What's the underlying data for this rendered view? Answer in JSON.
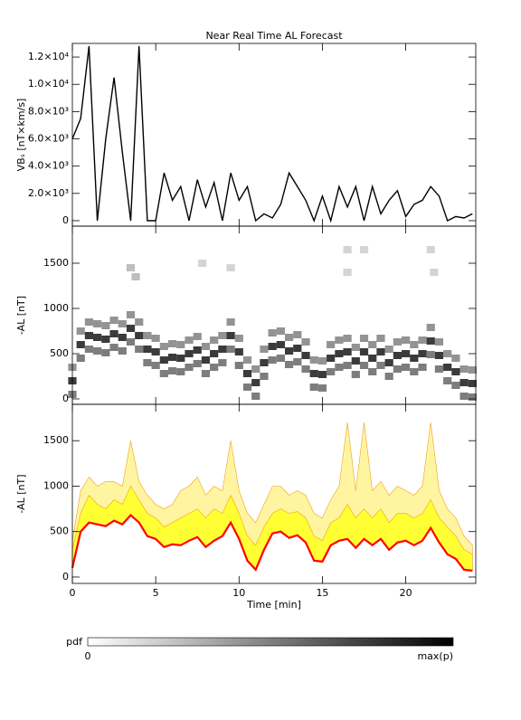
{
  "chart_data": [
    {
      "type": "line",
      "title": "Near Real Time AL Forecast",
      "ylabel": "VBₛ [nT×km/s]",
      "color": "#000000",
      "x": [
        0,
        0.5,
        1,
        1.5,
        2,
        2.5,
        3,
        3.5,
        4,
        4.5,
        5,
        5.5,
        6,
        6.5,
        7,
        7.5,
        8,
        8.5,
        9,
        9.5,
        10,
        10.5,
        11,
        11.5,
        12,
        12.5,
        13,
        13.5,
        14,
        14.5,
        15,
        15.5,
        16,
        16.5,
        17,
        17.5,
        18,
        18.5,
        19,
        19.5,
        20,
        20.5,
        21,
        21.5,
        22,
        22.5,
        23,
        23.5,
        24
      ],
      "values": [
        6000,
        7500,
        12800,
        0,
        6000,
        10500,
        5000,
        0,
        12800,
        0,
        0,
        3500,
        1500,
        2500,
        0,
        3000,
        1000,
        2800,
        0,
        3500,
        1500,
        2500,
        0,
        500,
        200,
        1200,
        3500,
        2500,
        1500,
        0,
        1800,
        0,
        2500,
        1000,
        2500,
        0,
        2500,
        500,
        1500,
        2200,
        300,
        1200,
        1500,
        2500,
        1800,
        0,
        300,
        200,
        500
      ],
      "xlim": [
        0,
        24.2
      ],
      "ylim": [
        -400,
        13000
      ],
      "xticks": [
        0,
        5,
        10,
        15,
        20
      ],
      "yticks": [
        0,
        {
          "value": 2000,
          "label": "2.0×10³"
        },
        {
          "value": 4000,
          "label": "4.0×10³"
        },
        {
          "value": 6000,
          "label": "6.0×10³"
        },
        {
          "value": 8000,
          "label": "8.0×10³"
        },
        {
          "value": 10000,
          "label": "1.0×10⁴"
        },
        {
          "value": 12000,
          "label": "1.2×10⁴"
        }
      ]
    },
    {
      "type": "heatmap",
      "ylabel": "-AL [nT]",
      "color": "#000000",
      "colorbar": {
        "label": "pdf",
        "min_label": "0",
        "max_label": "max(p)"
      },
      "cells": [
        [
          0,
          50,
          0.6
        ],
        [
          0,
          200,
          0.9
        ],
        [
          0,
          350,
          0.5
        ],
        [
          0.5,
          450,
          0.6
        ],
        [
          0.5,
          600,
          0.9
        ],
        [
          0.5,
          750,
          0.5
        ],
        [
          1,
          550,
          0.6
        ],
        [
          1,
          700,
          0.9
        ],
        [
          1,
          850,
          0.5
        ],
        [
          1.5,
          530,
          0.6
        ],
        [
          1.5,
          680,
          0.9
        ],
        [
          1.5,
          830,
          0.5
        ],
        [
          2,
          510,
          0.6
        ],
        [
          2,
          660,
          0.9
        ],
        [
          2,
          810,
          0.5
        ],
        [
          2.5,
          570,
          0.6
        ],
        [
          2.5,
          720,
          0.9
        ],
        [
          2.5,
          870,
          0.5
        ],
        [
          3,
          530,
          0.6
        ],
        [
          3,
          680,
          0.9
        ],
        [
          3,
          830,
          0.5
        ],
        [
          3.5,
          630,
          0.6
        ],
        [
          3.5,
          780,
          0.9
        ],
        [
          3.5,
          930,
          0.5
        ],
        [
          4,
          550,
          0.6
        ],
        [
          4,
          700,
          0.9
        ],
        [
          4,
          850,
          0.5
        ],
        [
          4.5,
          400,
          0.6
        ],
        [
          4.5,
          550,
          0.9
        ],
        [
          4.5,
          700,
          0.5
        ],
        [
          5,
          370,
          0.6
        ],
        [
          5,
          520,
          0.9
        ],
        [
          5,
          670,
          0.5
        ],
        [
          5.5,
          280,
          0.6
        ],
        [
          5.5,
          430,
          0.9
        ],
        [
          5.5,
          580,
          0.5
        ],
        [
          6,
          310,
          0.6
        ],
        [
          6,
          460,
          0.9
        ],
        [
          6,
          610,
          0.5
        ],
        [
          6.5,
          300,
          0.6
        ],
        [
          6.5,
          450,
          0.9
        ],
        [
          6.5,
          600,
          0.5
        ],
        [
          7,
          350,
          0.6
        ],
        [
          7,
          500,
          0.9
        ],
        [
          7,
          650,
          0.5
        ],
        [
          7.5,
          390,
          0.6
        ],
        [
          7.5,
          540,
          0.9
        ],
        [
          7.5,
          690,
          0.5
        ],
        [
          8,
          280,
          0.6
        ],
        [
          8,
          430,
          0.9
        ],
        [
          8,
          580,
          0.5
        ],
        [
          8.5,
          350,
          0.6
        ],
        [
          8.5,
          500,
          0.9
        ],
        [
          8.5,
          650,
          0.5
        ],
        [
          9,
          400,
          0.6
        ],
        [
          9,
          550,
          0.9
        ],
        [
          9,
          700,
          0.5
        ],
        [
          9.5,
          550,
          0.6
        ],
        [
          9.5,
          700,
          0.9
        ],
        [
          9.5,
          850,
          0.5
        ],
        [
          10,
          370,
          0.6
        ],
        [
          10,
          520,
          0.9
        ],
        [
          10,
          670,
          0.5
        ],
        [
          10.5,
          130,
          0.6
        ],
        [
          10.5,
          280,
          0.9
        ],
        [
          10.5,
          430,
          0.5
        ],
        [
          11,
          30,
          0.6
        ],
        [
          11,
          180,
          0.9
        ],
        [
          11,
          330,
          0.5
        ],
        [
          11.5,
          250,
          0.6
        ],
        [
          11.5,
          400,
          0.9
        ],
        [
          11.5,
          550,
          0.5
        ],
        [
          12,
          430,
          0.6
        ],
        [
          12,
          580,
          0.9
        ],
        [
          12,
          730,
          0.5
        ],
        [
          12.5,
          450,
          0.6
        ],
        [
          12.5,
          600,
          0.9
        ],
        [
          12.5,
          750,
          0.5
        ],
        [
          13,
          380,
          0.6
        ],
        [
          13,
          530,
          0.9
        ],
        [
          13,
          680,
          0.5
        ],
        [
          13.5,
          410,
          0.6
        ],
        [
          13.5,
          560,
          0.9
        ],
        [
          13.5,
          710,
          0.5
        ],
        [
          14,
          330,
          0.6
        ],
        [
          14,
          480,
          0.9
        ],
        [
          14,
          630,
          0.5
        ],
        [
          14.5,
          130,
          0.6
        ],
        [
          14.5,
          280,
          0.9
        ],
        [
          14.5,
          430,
          0.5
        ],
        [
          15,
          120,
          0.6
        ],
        [
          15,
          270,
          0.9
        ],
        [
          15,
          420,
          0.5
        ],
        [
          15.5,
          300,
          0.6
        ],
        [
          15.5,
          450,
          0.9
        ],
        [
          15.5,
          600,
          0.5
        ],
        [
          16,
          350,
          0.6
        ],
        [
          16,
          500,
          0.9
        ],
        [
          16,
          650,
          0.5
        ],
        [
          16.5,
          370,
          0.6
        ],
        [
          16.5,
          520,
          0.9
        ],
        [
          16.5,
          670,
          0.5
        ],
        [
          17,
          270,
          0.6
        ],
        [
          17,
          420,
          0.9
        ],
        [
          17,
          570,
          0.5
        ],
        [
          17.5,
          370,
          0.6
        ],
        [
          17.5,
          520,
          0.9
        ],
        [
          17.5,
          670,
          0.5
        ],
        [
          18,
          300,
          0.6
        ],
        [
          18,
          450,
          0.9
        ],
        [
          18,
          600,
          0.5
        ],
        [
          18.5,
          370,
          0.6
        ],
        [
          18.5,
          520,
          0.9
        ],
        [
          18.5,
          670,
          0.5
        ],
        [
          19,
          250,
          0.6
        ],
        [
          19,
          400,
          0.9
        ],
        [
          19,
          550,
          0.5
        ],
        [
          19.5,
          330,
          0.6
        ],
        [
          19.5,
          480,
          0.9
        ],
        [
          19.5,
          630,
          0.5
        ],
        [
          20,
          350,
          0.6
        ],
        [
          20,
          500,
          0.9
        ],
        [
          20,
          650,
          0.5
        ],
        [
          20.5,
          300,
          0.6
        ],
        [
          20.5,
          450,
          0.9
        ],
        [
          20.5,
          600,
          0.5
        ],
        [
          21,
          350,
          0.6
        ],
        [
          21,
          500,
          0.9
        ],
        [
          21,
          650,
          0.5
        ],
        [
          21.5,
          490,
          0.6
        ],
        [
          21.5,
          640,
          0.9
        ],
        [
          21.5,
          790,
          0.5
        ],
        [
          22,
          330,
          0.6
        ],
        [
          22,
          480,
          0.9
        ],
        [
          22,
          630,
          0.5
        ],
        [
          22.5,
          200,
          0.6
        ],
        [
          22.5,
          350,
          0.9
        ],
        [
          22.5,
          500,
          0.5
        ],
        [
          23,
          150,
          0.6
        ],
        [
          23,
          300,
          0.9
        ],
        [
          23,
          450,
          0.5
        ],
        [
          23.5,
          30,
          0.6
        ],
        [
          23.5,
          180,
          0.9
        ],
        [
          23.5,
          330,
          0.5
        ],
        [
          24,
          20,
          0.6
        ],
        [
          24,
          170,
          0.9
        ],
        [
          24,
          320,
          0.5
        ],
        [
          3.5,
          1450,
          0.3
        ],
        [
          3.8,
          1350,
          0.3
        ],
        [
          7.8,
          1500,
          0.2
        ],
        [
          9.5,
          1450,
          0.2
        ],
        [
          16.5,
          1650,
          0.2
        ],
        [
          16.5,
          1400,
          0.2
        ],
        [
          17.5,
          1650,
          0.2
        ],
        [
          21.5,
          1650,
          0.2
        ],
        [
          21.7,
          1400,
          0.2
        ]
      ],
      "xlim": [
        0,
        24.2
      ],
      "ylim": [
        -60,
        1910
      ],
      "xticks": [
        0,
        5,
        10,
        15,
        20
      ],
      "yticks": [
        0,
        500,
        1000,
        1500
      ]
    },
    {
      "type": "area",
      "xlabel": "Time [min]",
      "ylabel": "-AL [nT]",
      "x": [
        0,
        0.5,
        1,
        1.5,
        2,
        2.5,
        3,
        3.5,
        4,
        4.5,
        5,
        5.5,
        6,
        6.5,
        7,
        7.5,
        8,
        8.5,
        9,
        9.5,
        10,
        10.5,
        11,
        11.5,
        12,
        12.5,
        13,
        13.5,
        14,
        14.5,
        15,
        15.5,
        16,
        16.5,
        17,
        17.5,
        18,
        18.5,
        19,
        19.5,
        20,
        20.5,
        21,
        21.5,
        22,
        22.5,
        23,
        23.5,
        24
      ],
      "series": [
        {
          "color": "#ff0000",
          "values": [
            100,
            500,
            600,
            580,
            560,
            620,
            580,
            680,
            600,
            450,
            420,
            330,
            360,
            350,
            400,
            440,
            330,
            400,
            450,
            600,
            420,
            180,
            80,
            300,
            480,
            500,
            430,
            460,
            380,
            180,
            170,
            350,
            400,
            420,
            320,
            420,
            350,
            420,
            300,
            380,
            400,
            350,
            400,
            540,
            380,
            250,
            200,
            80,
            70
          ]
        },
        {
          "color": "#ffff33",
          "values": [
            300,
            700,
            900,
            800,
            750,
            850,
            800,
            1000,
            850,
            700,
            650,
            550,
            600,
            650,
            700,
            750,
            650,
            750,
            700,
            900,
            700,
            450,
            350,
            550,
            700,
            750,
            700,
            720,
            650,
            450,
            400,
            600,
            650,
            800,
            650,
            750,
            650,
            750,
            600,
            700,
            700,
            650,
            700,
            850,
            650,
            550,
            450,
            300,
            250
          ]
        },
        {
          "color": "#fff5a0",
          "values": [
            400,
            950,
            1100,
            1000,
            1050,
            1050,
            1000,
            1500,
            1050,
            900,
            800,
            750,
            800,
            950,
            1000,
            1100,
            900,
            1000,
            950,
            1500,
            950,
            700,
            600,
            800,
            1000,
            1000,
            900,
            950,
            900,
            700,
            650,
            850,
            1000,
            1700,
            950,
            1700,
            950,
            1050,
            900,
            1000,
            950,
            900,
            1000,
            1700,
            950,
            750,
            650,
            450,
            350
          ]
        }
      ],
      "xlim": [
        0,
        24.2
      ],
      "ylim": [
        -70,
        1900
      ],
      "xticks": [
        0,
        5,
        10,
        15,
        20
      ],
      "yticks": [
        0,
        500,
        1000,
        1500
      ]
    }
  ]
}
